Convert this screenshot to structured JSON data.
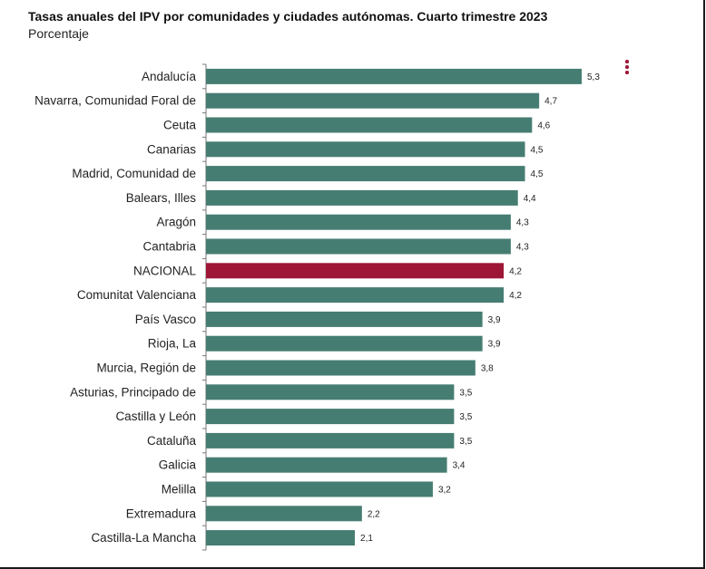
{
  "title": "Tasas anuales del IPV por comunidades y ciudades autónomas. Cuarto trimestre 2023",
  "subtitle": "Porcentaje",
  "menu_icon": "more-vertical-icon",
  "colors": {
    "bar": "#467d72",
    "highlight": "#9e1636",
    "menu": "#9e1636",
    "axis": "#777777"
  },
  "chart_data": {
    "type": "bar",
    "orientation": "horizontal",
    "title": "Tasas anuales del IPV por comunidades y ciudades autónomas. Cuarto trimestre 2023",
    "subtitle": "Porcentaje",
    "categories": [
      "Andalucía",
      "Navarra, Comunidad Foral de",
      "Ceuta",
      "Canarias",
      "Madrid, Comunidad de",
      "Balears, Illes",
      "Aragón",
      "Cantabria",
      "NACIONAL",
      "Comunitat Valenciana",
      "País Vasco",
      "Rioja, La",
      "Murcia, Región de",
      "Asturias, Principado de",
      "Castilla y León",
      "Cataluña",
      "Galicia",
      "Melilla",
      "Extremadura",
      "Castilla-La Mancha"
    ],
    "values": [
      5.3,
      4.7,
      4.6,
      4.5,
      4.5,
      4.4,
      4.3,
      4.3,
      4.2,
      4.2,
      3.9,
      3.9,
      3.8,
      3.5,
      3.5,
      3.5,
      3.4,
      3.2,
      2.2,
      2.1
    ],
    "value_labels": [
      "5,3",
      "4,7",
      "4,6",
      "4,5",
      "4,5",
      "4,4",
      "4,3",
      "4,3",
      "4,2",
      "4,2",
      "3,9",
      "3,9",
      "3,8",
      "3,5",
      "3,5",
      "3,5",
      "3,4",
      "3,2",
      "2,2",
      "2,1"
    ],
    "highlight_category": "NACIONAL",
    "xlim": [
      0,
      5.3
    ],
    "grid": false,
    "legend": "none"
  }
}
